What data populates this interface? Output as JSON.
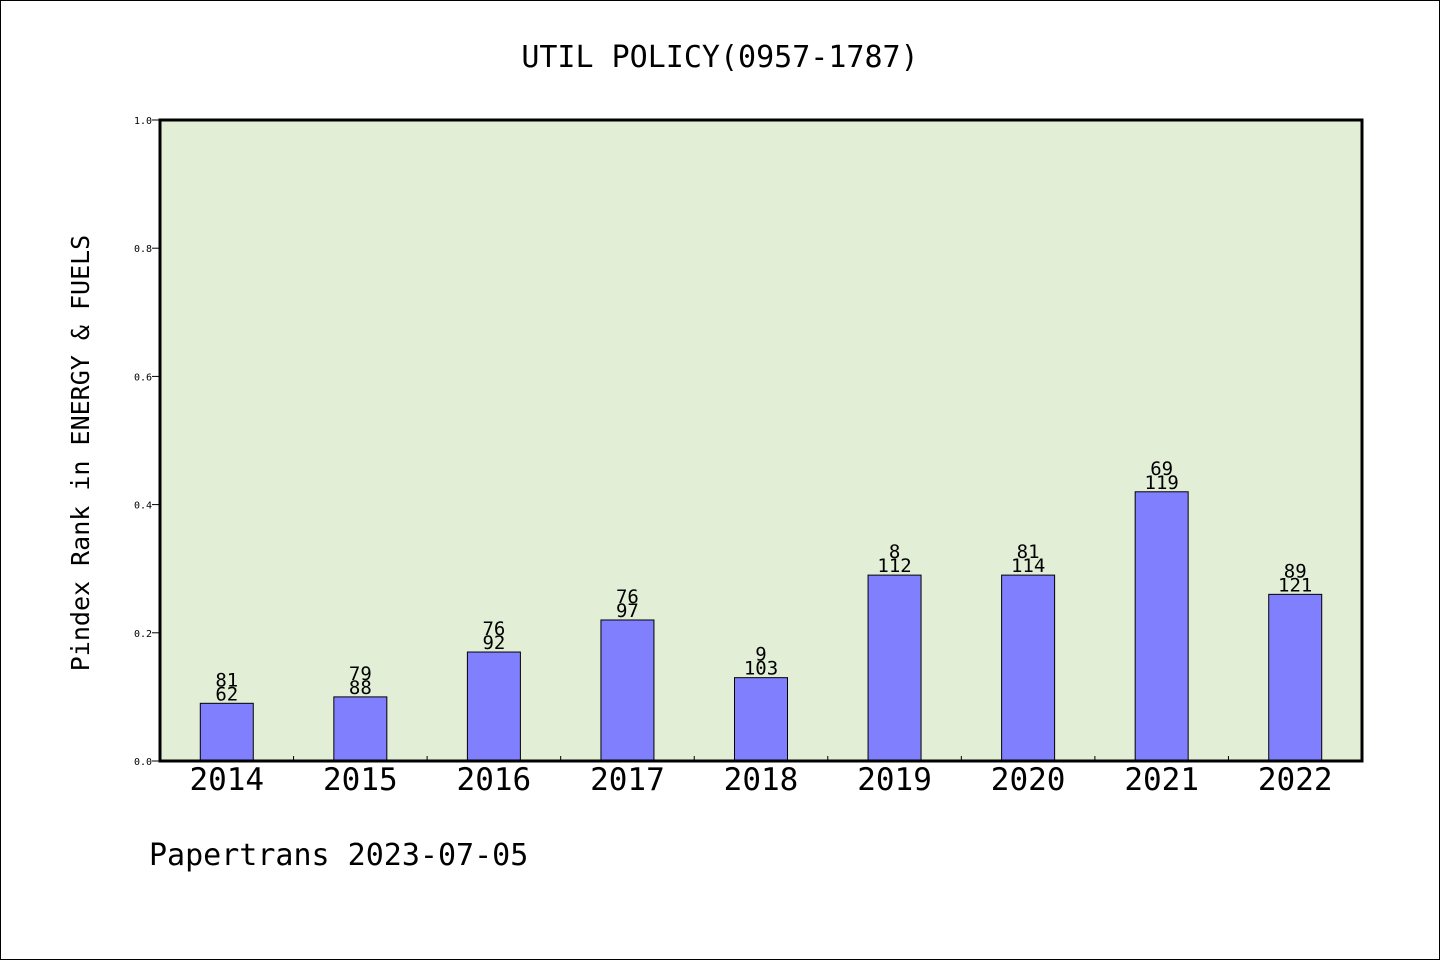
{
  "footer": {
    "credit": "Papertrans 2023-07-05"
  },
  "chart_data": {
    "type": "bar",
    "title": "UTIL POLICY(0957-1787)",
    "ylabel": "Pindex Rank in ENERGY & FUELS",
    "xlabel": "",
    "categories": [
      "2014",
      "2015",
      "2016",
      "2017",
      "2018",
      "2019",
      "2020",
      "2021",
      "2022"
    ],
    "values": [
      0.09,
      0.1,
      0.17,
      0.22,
      0.13,
      0.29,
      0.29,
      0.42,
      0.26
    ],
    "top_labels": [
      "81",
      "79",
      "76",
      "76",
      "9",
      "8",
      "81",
      "69",
      "89"
    ],
    "bottom_labels": [
      "62",
      "88",
      "92",
      "97",
      "103",
      "112",
      "114",
      "119",
      "121"
    ],
    "ylim": [
      0,
      1.0
    ],
    "yticks": [
      "0.0",
      "0.2",
      "0.4",
      "0.6",
      "0.8",
      "1.0"
    ],
    "grid": false,
    "colors": {
      "bar": "#8080ff",
      "plot_bg": "#e2efd6",
      "axis": "#000000"
    }
  }
}
